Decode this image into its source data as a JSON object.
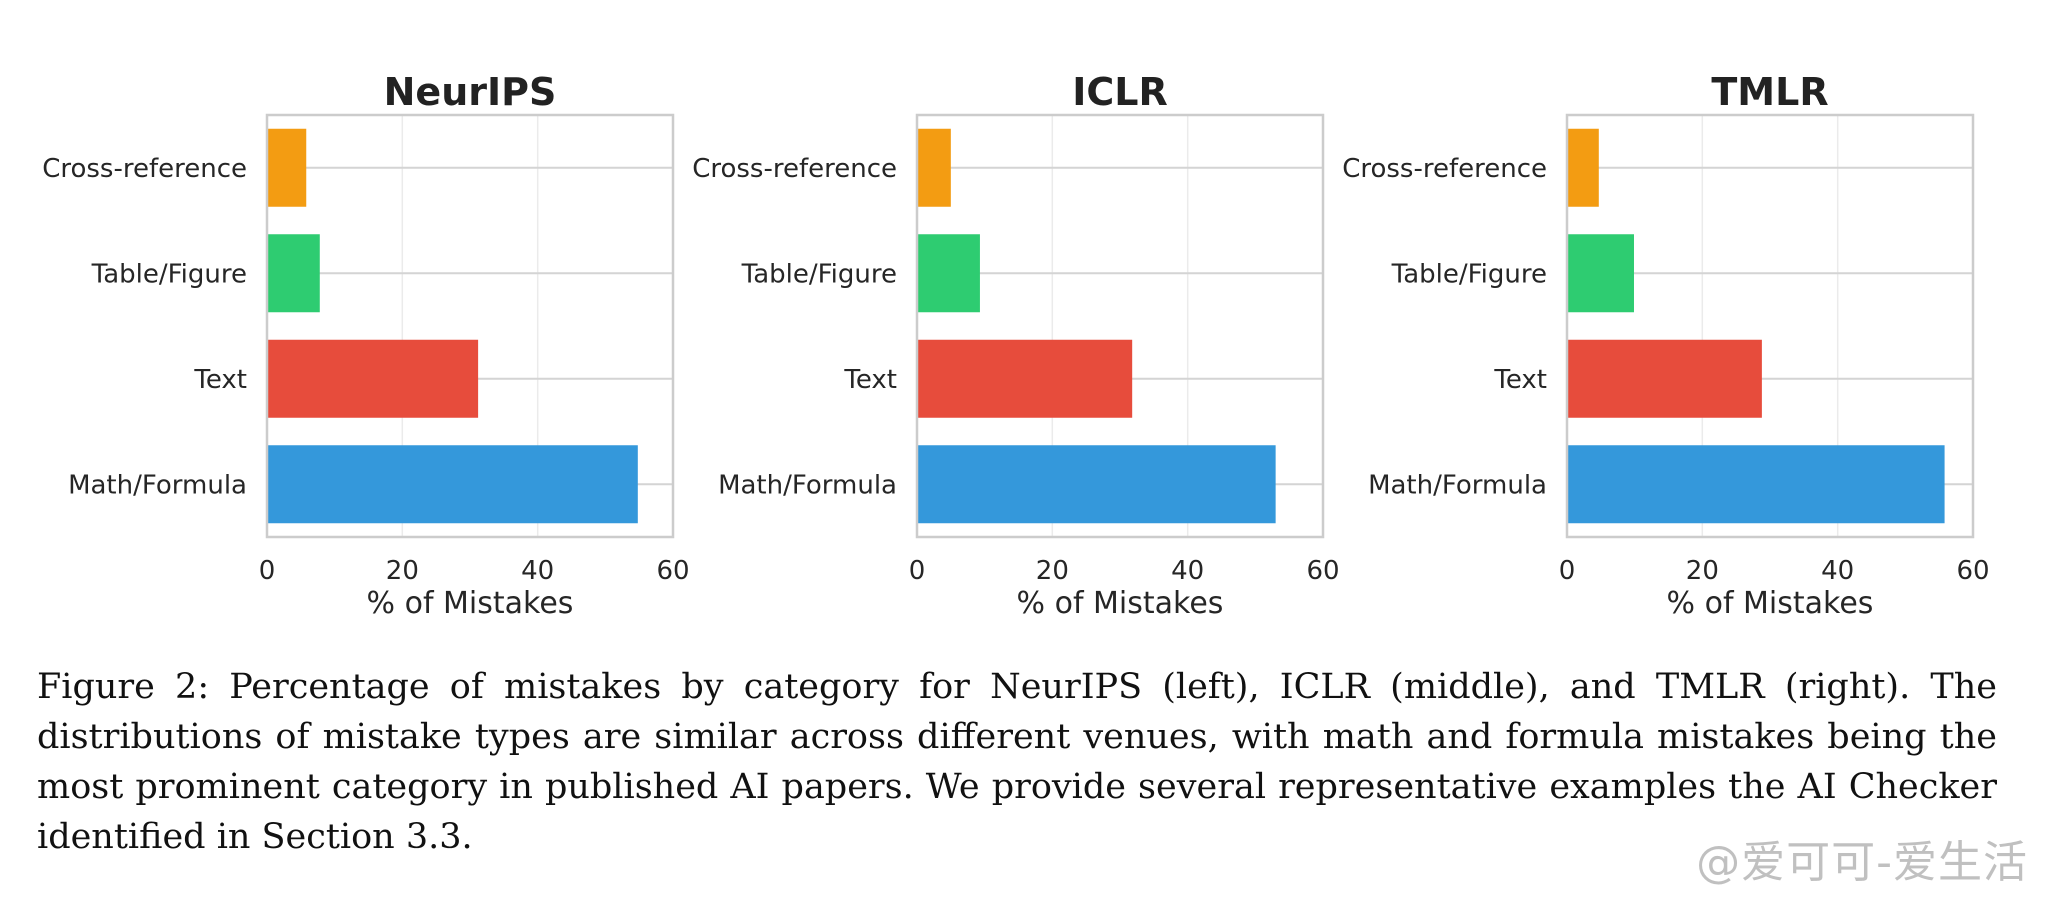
{
  "chart_data": [
    {
      "type": "bar",
      "orientation": "horizontal",
      "title": "NeurIPS",
      "categories": [
        "Cross-reference",
        "Table/Figure",
        "Text",
        "Math/Formula"
      ],
      "values": [
        5.8,
        7.8,
        31.2,
        54.8
      ],
      "colors": [
        "#f39c12",
        "#2ecc71",
        "#e74c3c",
        "#3498db"
      ],
      "xlabel": "% of Mistakes",
      "xlim": [
        0,
        60
      ],
      "xticks": [
        "0",
        "20",
        "40",
        "60"
      ],
      "grid": true
    },
    {
      "type": "bar",
      "orientation": "horizontal",
      "title": "ICLR",
      "categories": [
        "Cross-reference",
        "Table/Figure",
        "Text",
        "Math/Formula"
      ],
      "values": [
        5.0,
        9.3,
        31.8,
        53.0
      ],
      "colors": [
        "#f39c12",
        "#2ecc71",
        "#e74c3c",
        "#3498db"
      ],
      "xlabel": "% of Mistakes",
      "xlim": [
        0,
        60
      ],
      "xticks": [
        "0",
        "20",
        "40",
        "60"
      ],
      "grid": true
    },
    {
      "type": "bar",
      "orientation": "horizontal",
      "title": "TMLR",
      "categories": [
        "Cross-reference",
        "Table/Figure",
        "Text",
        "Math/Formula"
      ],
      "values": [
        4.7,
        9.9,
        28.8,
        55.8
      ],
      "colors": [
        "#f39c12",
        "#2ecc71",
        "#e74c3c",
        "#3498db"
      ],
      "xlabel": "% of Mistakes",
      "xlim": [
        0,
        60
      ],
      "xticks": [
        "0",
        "20",
        "40",
        "60"
      ],
      "grid": true
    }
  ],
  "caption": "Figure 2: Percentage of mistakes by category for NeurIPS (left), ICLR (middle), and TMLR (right). The distributions of mistake types are similar across different venues, with math and formula mistakes being the most prominent category in published AI papers. We provide several representative examples the AI Checker identified in Section 3.3.",
  "watermark": "@爱可可-爱生活"
}
